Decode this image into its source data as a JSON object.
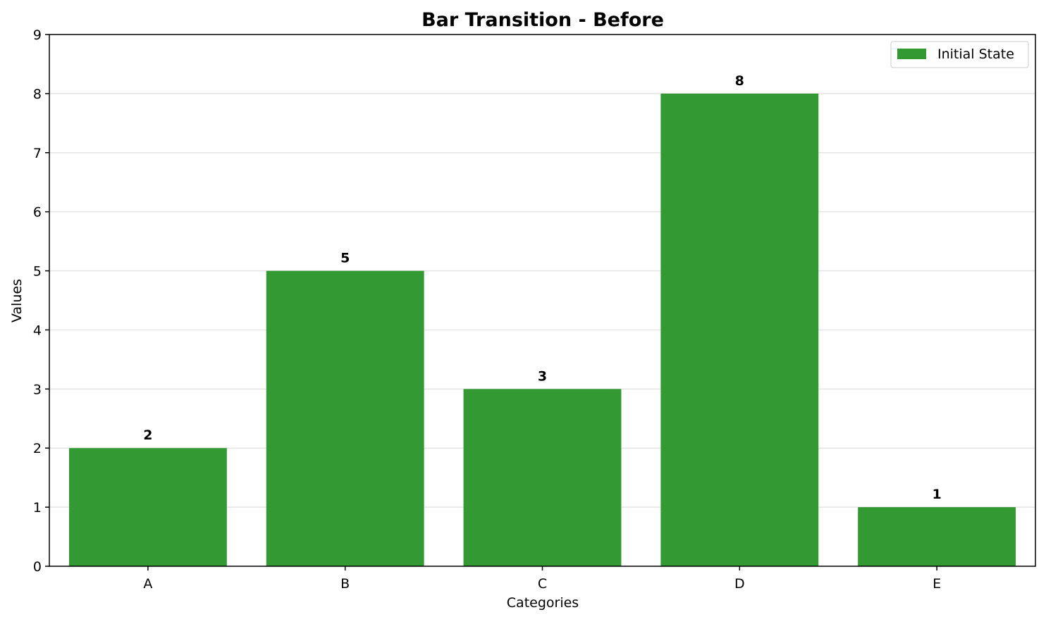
{
  "chart_data": {
    "type": "bar",
    "title": "Bar Transition - Before",
    "xlabel": "Categories",
    "ylabel": "Values",
    "categories": [
      "A",
      "B",
      "C",
      "D",
      "E"
    ],
    "series": [
      {
        "name": "Initial State",
        "values": [
          2,
          5,
          3,
          8,
          1
        ],
        "color": "#339933"
      }
    ],
    "ylim": [
      0,
      9
    ],
    "yticks": [
      0,
      1,
      2,
      3,
      4,
      5,
      6,
      7,
      8,
      9
    ],
    "grid": "horizontal",
    "legend_position": "top-right",
    "data_labels": [
      "2",
      "5",
      "3",
      "8",
      "1"
    ]
  }
}
